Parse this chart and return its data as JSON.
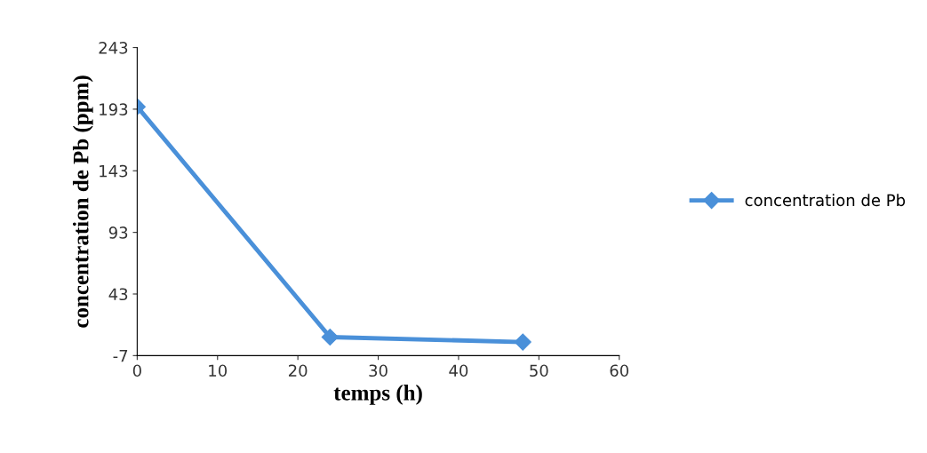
{
  "chart_data": {
    "type": "line",
    "xlabel": "temps (h)",
    "ylabel": "concentration de Pb (ppm)",
    "x": [
      0,
      24,
      48
    ],
    "series": [
      {
        "name": "concentration de Pb",
        "color": "#4a90d9",
        "values": [
          195,
          8,
          4
        ]
      }
    ],
    "xlim": [
      0,
      60
    ],
    "xticks": [
      0,
      10,
      20,
      30,
      40,
      50,
      60
    ],
    "ylim": [
      -7,
      243
    ],
    "yticks": [
      -7,
      43,
      93,
      143,
      193,
      243
    ],
    "marker": "diamond",
    "line_style": "solid",
    "legend": "right",
    "grid": false
  }
}
